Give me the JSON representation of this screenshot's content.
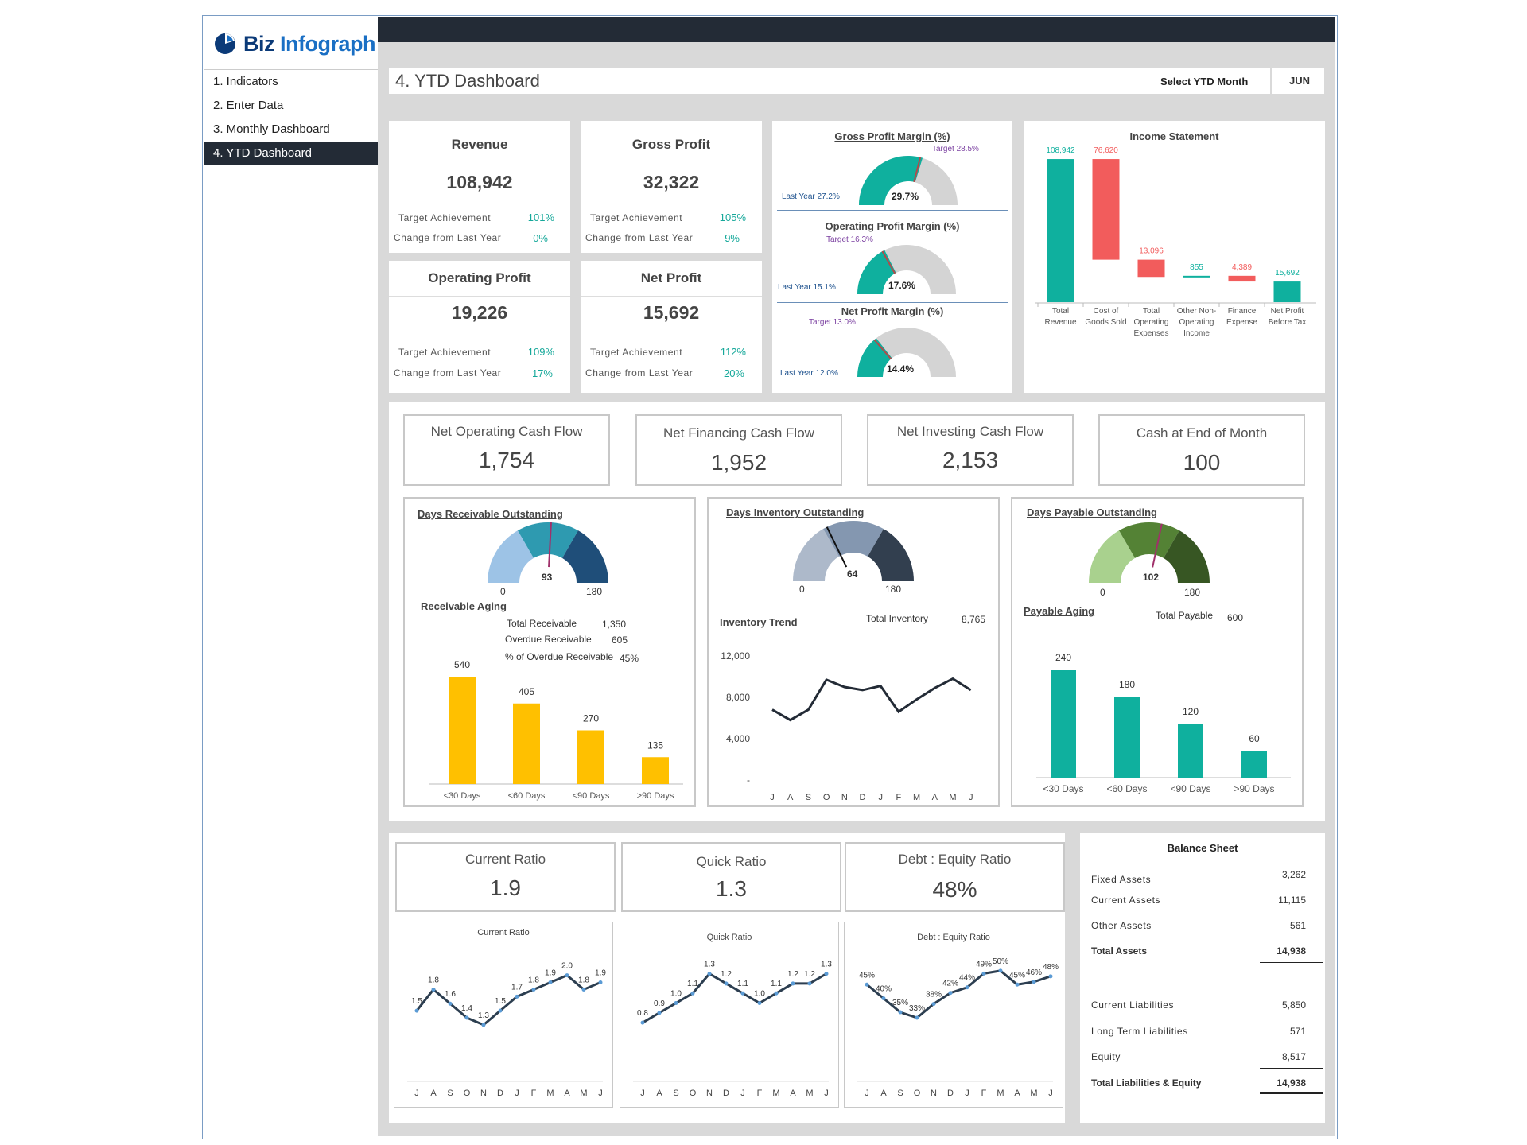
{
  "app": {
    "logo_bold": "Biz",
    "logo_rest": " Infograph"
  },
  "nav": [
    "1. Indicators",
    "2. Enter Data",
    "3. Monthly Dashboard",
    "4. YTD Dashboard"
  ],
  "header": {
    "title": "4. YTD Dashboard",
    "select_label": "Select YTD Month",
    "month": "JUN"
  },
  "kpis": [
    {
      "title": "Revenue",
      "value": "108,942",
      "target_label": "Target Achievement",
      "target": "101%",
      "change_label": "Change from Last Year",
      "change": "0%"
    },
    {
      "title": "Gross Profit",
      "value": "32,322",
      "target_label": "Target Achievement",
      "target": "105%",
      "change_label": "Change from Last Year",
      "change": "9%"
    },
    {
      "title": "Operating Profit",
      "value": "19,226",
      "target_label": "Target Achievement",
      "target": "109%",
      "change_label": "Change from Last Year",
      "change": "17%"
    },
    {
      "title": "Net Profit",
      "value": "15,692",
      "target_label": "Target Achievement",
      "target": "112%",
      "change_label": "Change from Last Year",
      "change": "20%"
    }
  ],
  "margins": [
    {
      "title": "Gross Profit Margin (%)",
      "value": "29.7%",
      "pct": 29.7,
      "target": "Target 28.5%",
      "last_year": "Last Year 27.2%"
    },
    {
      "title": "Operating Profit Margin (%)",
      "value": "17.6%",
      "pct": 17.6,
      "target": "Target 16.3%",
      "last_year": "Last Year 15.1%"
    },
    {
      "title": "Net Profit Margin (%)",
      "value": "14.4%",
      "pct": 14.4,
      "target": "Target 13.0%",
      "last_year": "Last Year 12.0%"
    }
  ],
  "income_statement": {
    "title": "Income Statement",
    "categories": [
      "Total Revenue",
      "Cost of Goods Sold",
      "Total Operating Expenses",
      "Other Non-Operating Income",
      "Finance Expense",
      "Net Profit Before Tax"
    ],
    "category_lines": [
      [
        "Total",
        "Revenue"
      ],
      [
        "Cost of",
        "Goods Sold"
      ],
      [
        "Total",
        "Operating",
        "Expenses"
      ],
      [
        "Other Non-",
        "Operating",
        "Income"
      ],
      [
        "Finance",
        "Expense"
      ],
      [
        "Net Profit",
        "Before Tax"
      ]
    ],
    "values": [
      108942,
      -76620,
      -13096,
      855,
      -4389,
      15692
    ],
    "labels": [
      "108,942",
      "76,620",
      "13,096",
      "855",
      "4,389",
      "15,692"
    ],
    "colors": {
      "positive": "#0fb09e",
      "negative": "#f25c5c"
    }
  },
  "cash_flow": [
    {
      "title": "Net Operating Cash Flow",
      "value": "1,754"
    },
    {
      "title": "Net Financing Cash Flow",
      "value": "1,952"
    },
    {
      "title": "Net Investing Cash Flow",
      "value": "2,153"
    },
    {
      "title": "Cash at End of Month",
      "value": "100"
    }
  ],
  "receivable": {
    "gauge_title": "Days Receivable Outstanding",
    "gauge_value": "93",
    "gauge_min": "0",
    "gauge_max": "180",
    "aging_title": "Receivable Aging",
    "info": [
      [
        "Total Receivable",
        "1,350"
      ],
      [
        "Overdue Receivable",
        "605"
      ],
      [
        "% of Overdue Receivable",
        "45%"
      ]
    ]
  },
  "inventory": {
    "gauge_title": "Days Inventory Outstanding",
    "gauge_value": "64",
    "gauge_min": "0",
    "gauge_max": "180",
    "trend_title": "Inventory Trend",
    "total_label": "Total Inventory",
    "total": "8,765"
  },
  "payable": {
    "gauge_title": "Days Payable Outstanding",
    "gauge_value": "102",
    "gauge_min": "0",
    "gauge_max": "180",
    "aging_title": "Payable Aging",
    "total_label": "Total Payable",
    "total": "600"
  },
  "ratios": [
    {
      "title": "Current Ratio",
      "value": "1.9"
    },
    {
      "title": "Quick Ratio",
      "value": "1.3"
    },
    {
      "title": "Debt : Equity Ratio",
      "value": "48%"
    }
  ],
  "balance_sheet": {
    "title": "Balance Sheet",
    "assets": [
      [
        "Fixed Assets",
        "3,262"
      ],
      [
        "Current Assets",
        "11,115"
      ],
      [
        "Other Assets",
        "561"
      ]
    ],
    "total_assets": [
      "Total Assets",
      "14,938"
    ],
    "liabilities": [
      [
        "Current Liabilities",
        "5,850"
      ],
      [
        "Long Term Liabilities",
        "571"
      ],
      [
        "Equity",
        "8,517"
      ]
    ],
    "total_liabilities": [
      "Total Liabilities & Equity",
      "14,938"
    ]
  },
  "chart_data": [
    {
      "type": "bar",
      "title": "Receivable Aging",
      "categories": [
        "<30 Days",
        "<60 Days",
        "<90 Days",
        ">90 Days"
      ],
      "values": [
        540,
        405,
        270,
        135
      ],
      "color": "#ffc000"
    },
    {
      "type": "line",
      "title": "Inventory Trend",
      "x": [
        "J",
        "A",
        "S",
        "O",
        "N",
        "D",
        "J",
        "F",
        "M",
        "A",
        "M",
        "J"
      ],
      "values": [
        6800,
        5800,
        6800,
        9700,
        9000,
        8700,
        9100,
        6600,
        7800,
        8900,
        9800,
        8700
      ],
      "ylim": [
        0,
        12000
      ],
      "yticks": [
        "12,000",
        "8,000",
        "4,000",
        "-"
      ],
      "color": "#232b36"
    },
    {
      "type": "bar",
      "title": "Payable Aging",
      "categories": [
        "<30 Days",
        "<60 Days",
        "<90 Days",
        ">90 Days"
      ],
      "values": [
        240,
        180,
        120,
        60
      ],
      "color": "#0fb09e"
    },
    {
      "type": "line",
      "title": "Current Ratio",
      "x": [
        "J",
        "A",
        "S",
        "O",
        "N",
        "D",
        "J",
        "F",
        "M",
        "A",
        "M",
        "J"
      ],
      "values": [
        1.5,
        1.8,
        1.6,
        1.4,
        1.3,
        1.5,
        1.7,
        1.8,
        1.9,
        2.0,
        1.8,
        1.9
      ],
      "labels": [
        "1.5",
        "1.8",
        "1.6",
        "1.4",
        "1.3",
        "1.5",
        "1.7",
        "1.8",
        "1.9",
        "2.0",
        "1.8",
        "1.9"
      ],
      "ylim": [
        0.5,
        2.3
      ]
    },
    {
      "type": "line",
      "title": "Quick Ratio",
      "x": [
        "J",
        "A",
        "S",
        "O",
        "N",
        "D",
        "J",
        "F",
        "M",
        "A",
        "M",
        "J"
      ],
      "values": [
        0.8,
        0.9,
        1.0,
        1.1,
        1.3,
        1.2,
        1.1,
        1.0,
        1.1,
        1.2,
        1.2,
        1.3
      ],
      "labels": [
        "0.8",
        "0.9",
        "1.0",
        "1.1",
        "1.3",
        "1.2",
        "1.1",
        "1.0",
        "1.1",
        "1.2",
        "1.2",
        "1.3"
      ],
      "ylim": [
        0.2,
        1.5
      ]
    },
    {
      "type": "line",
      "title": "Debt : Equity Ratio",
      "x": [
        "J",
        "A",
        "S",
        "O",
        "N",
        "D",
        "J",
        "F",
        "M",
        "A",
        "M",
        "J"
      ],
      "values": [
        45,
        40,
        35,
        33,
        38,
        42,
        44,
        49,
        50,
        45,
        46,
        48
      ],
      "labels": [
        "45%",
        "40%",
        "35%",
        "33%",
        "38%",
        "42%",
        "44%",
        "49%",
        "50%",
        "45%",
        "46%",
        "48%"
      ],
      "ylim": [
        10,
        56
      ]
    }
  ]
}
